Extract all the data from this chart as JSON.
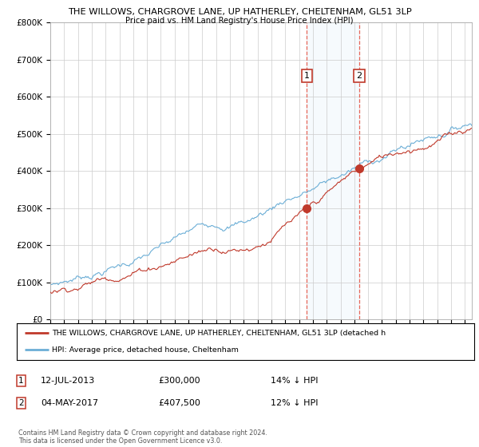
{
  "title_line1": "THE WILLOWS, CHARGROVE LANE, UP HATHERLEY, CHELTENHAM, GL51 3LP",
  "title_line2": "Price paid vs. HM Land Registry's House Price Index (HPI)",
  "ylim": [
    0,
    800000
  ],
  "yticks": [
    0,
    100000,
    200000,
    300000,
    400000,
    500000,
    600000,
    700000,
    800000
  ],
  "ytick_labels": [
    "£0",
    "£100K",
    "£200K",
    "£300K",
    "£400K",
    "£500K",
    "£600K",
    "£700K",
    "£800K"
  ],
  "sale1_date_label": "12-JUL-2013",
  "sale1_price_label": "£300,000",
  "sale1_hpi_label": "14% ↓ HPI",
  "sale2_date_label": "04-MAY-2017",
  "sale2_price_label": "£407,500",
  "sale2_hpi_label": "12% ↓ HPI",
  "legend_line1": "THE WILLOWS, CHARGROVE LANE, UP HATHERLEY, CHELTENHAM, GL51 3LP (detached h",
  "legend_line2": "HPI: Average price, detached house, Cheltenham",
  "footer": "Contains HM Land Registry data © Crown copyright and database right 2024.\nThis data is licensed under the Open Government Licence v3.0.",
  "hpi_color": "#6baed6",
  "price_color": "#c0392b",
  "bg_color": "#ffffff",
  "grid_color": "#cccccc",
  "sale1_year": 2013.55,
  "sale1_price": 300000,
  "sale2_year": 2017.35,
  "sale2_price": 407500,
  "xlim_start": 1995,
  "xlim_end": 2025.5
}
